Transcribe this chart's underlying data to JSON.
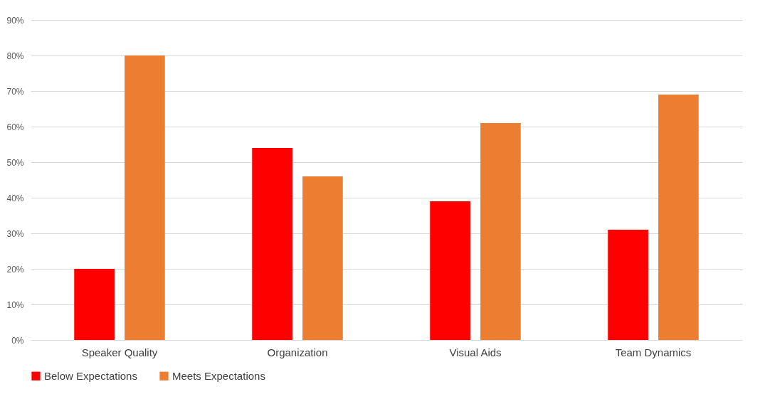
{
  "chart_data": {
    "type": "bar",
    "categories": [
      "Speaker Quality",
      "Organization",
      "Visual Aids",
      "Team Dynamics"
    ],
    "series": [
      {
        "name": "Below Expectations",
        "color": "#ff0000",
        "values": [
          20,
          54,
          39,
          31
        ]
      },
      {
        "name": "Meets Expectations",
        "color": "#ed7d31",
        "values": [
          80,
          46,
          61,
          69
        ]
      }
    ],
    "ylim": [
      0,
      90
    ],
    "yticks": [
      {
        "value": 0,
        "label": "0%"
      },
      {
        "value": 10,
        "label": "10%"
      },
      {
        "value": 20,
        "label": "20%"
      },
      {
        "value": 30,
        "label": "30%"
      },
      {
        "value": 40,
        "label": "40%"
      },
      {
        "value": 50,
        "label": "50%"
      },
      {
        "value": 60,
        "label": "60%"
      },
      {
        "value": 70,
        "label": "70%"
      },
      {
        "value": 80,
        "label": "80%"
      },
      {
        "value": 90,
        "label": "90%"
      }
    ],
    "grid": "y",
    "legend": "bottom"
  }
}
